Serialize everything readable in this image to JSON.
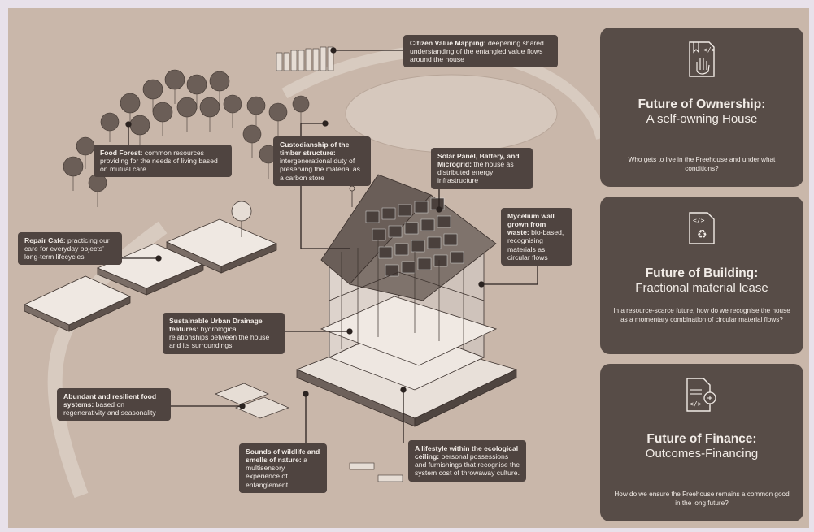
{
  "callouts": {
    "citizen": {
      "bold": "Citizen Value Mapping:",
      "text": " deepening  shared understanding of the entangled value flows around the house"
    },
    "food_forest": {
      "bold": "Food Forest:",
      "text": " common resources providing for the needs of living based on mutual care"
    },
    "custodianship": {
      "bold": "Custodianship of the timber structure:",
      "text": " intergenerational duty of preserving the material as a carbon store"
    },
    "solar": {
      "bold": "Solar Panel, Battery, and Microgrid:",
      "text": " the house as distributed energy infrastructure"
    },
    "mycelium": {
      "bold": "Mycelium wall grown from waste:",
      "text": " bio-based, recognising materials as circular flows"
    },
    "repair": {
      "bold": "Repair Café:",
      "text": " practicing our care for everyday objects’ long-term lifecycles"
    },
    "drainage": {
      "bold": "Sustainable Urban Drainage features:",
      "text": "  hydrological relationships between the house and its surroundings"
    },
    "food_systems": {
      "bold": "Abundant and resilient food systems:",
      "text": " based on regenerativity and seasonality"
    },
    "wildlife": {
      "bold": "Sounds of wildlife and smells of nature:",
      "text": " a multisensory experience of entanglement"
    },
    "lifestyle": {
      "bold": "A lifestyle within the ecological ceiling:",
      "text": " personal possessions and furnishings that recognise the system cost of throwaway culture."
    }
  },
  "cards": [
    {
      "title": "Future of Ownership:",
      "subtitle": "A self-owning House",
      "question": "Who gets to live in the Freehouse and under what conditions?",
      "icon": "ownership-icon"
    },
    {
      "title": "Future of Building:",
      "subtitle": "Fractional material lease",
      "question": "In a resource-scarce future, how do we recognise the house as a momentary combination of circular material flows?",
      "icon": "building-icon"
    },
    {
      "title": "Future of Finance:",
      "subtitle": "Outcomes-Financing",
      "question": "How do we ensure the Freehouse remains a common good in the long future?",
      "icon": "finance-icon"
    }
  ],
  "colors": {
    "background": "#c9b7aa",
    "panel": "#574c47",
    "callout": "#4f4440",
    "text_light": "#f2ece7",
    "ink": "#3a302c"
  }
}
